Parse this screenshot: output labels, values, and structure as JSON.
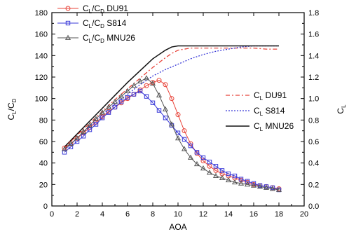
{
  "chart_data": {
    "type": "line",
    "xlabel": "AOA",
    "ylabel_left_main": "C",
    "ylabel_left_sub1": "L",
    "ylabel_left_mid": "/C",
    "ylabel_left_sub2": "D",
    "ylabel_right_main": "C",
    "ylabel_right_sub": "L",
    "xlim": [
      0,
      20
    ],
    "ylim_left": [
      0,
      180
    ],
    "ylim_right": [
      0.0,
      1.8
    ],
    "x_ticks": [
      "0",
      "2",
      "4",
      "6",
      "8",
      "10",
      "12",
      "14",
      "16",
      "18",
      "20"
    ],
    "y_left_ticks": [
      "0",
      "20",
      "40",
      "60",
      "80",
      "100",
      "120",
      "140",
      "160",
      "180"
    ],
    "y_right_ticks": [
      "0.0",
      "0.2",
      "0.4",
      "0.6",
      "0.8",
      "1.0",
      "1.2",
      "1.4",
      "1.6",
      "1.8"
    ],
    "legend_left": [
      {
        "prefix": "C",
        "sub1": "L",
        "mid": "/C",
        "sub2": "D",
        "name": " DU91",
        "color": "#e8443a",
        "marker": "circle"
      },
      {
        "prefix": "C",
        "sub1": "L",
        "mid": "/C",
        "sub2": "D",
        "name": " S814",
        "color": "#3a3ad8",
        "marker": "square"
      },
      {
        "prefix": "C",
        "sub1": "L",
        "mid": "/C",
        "sub2": "D",
        "name": " MNU26",
        "color": "#555555",
        "marker": "triangle"
      }
    ],
    "legend_right": [
      {
        "prefix": "C",
        "sub": "L",
        "name": " DU91",
        "color": "#e8443a",
        "dash": "6,3,2,3"
      },
      {
        "prefix": "C",
        "sub": "L",
        "name": " S814",
        "color": "#3a3ad8",
        "dash": "2,2"
      },
      {
        "prefix": "C",
        "sub": "L",
        "name": " MNU26",
        "color": "#111111",
        "dash": ""
      }
    ],
    "series_cl_cd": [
      {
        "name": "DU91",
        "axis": "left",
        "color": "#e8443a",
        "marker": "circle",
        "x": [
          1,
          1.5,
          2,
          2.5,
          3,
          3.5,
          4,
          4.5,
          5,
          5.5,
          6,
          6.5,
          7,
          7.5,
          8,
          8.5,
          9,
          9.5,
          10,
          10.5,
          11,
          11.5,
          12,
          12.5,
          13,
          13.5,
          14,
          14.5,
          15,
          15.5,
          16,
          16.5,
          17,
          17.5,
          18
        ],
        "y": [
          54,
          58,
          63,
          68,
          73,
          78,
          83,
          88,
          92,
          96,
          100,
          104,
          108,
          112,
          115,
          117,
          113,
          100,
          85,
          70,
          58,
          49,
          42,
          37,
          33,
          30,
          28,
          26,
          24,
          22,
          20,
          19,
          18,
          17,
          16
        ]
      },
      {
        "name": "S814",
        "axis": "left",
        "color": "#3a3ad8",
        "marker": "square",
        "x": [
          1,
          1.5,
          2,
          2.5,
          3,
          3.5,
          4,
          4.5,
          5,
          5.5,
          6,
          6.5,
          7,
          7.5,
          8,
          8.5,
          9,
          9.5,
          10,
          10.5,
          11,
          11.5,
          12,
          12.5,
          13,
          13.5,
          14,
          14.5,
          15,
          15.5,
          16,
          16.5,
          17,
          17.5,
          18
        ],
        "y": [
          50,
          55,
          60,
          65,
          71,
          76,
          82,
          87,
          92,
          97,
          101,
          104,
          107,
          102,
          96,
          89,
          82,
          75,
          68,
          62,
          56,
          50,
          45,
          41,
          37,
          33,
          30,
          28,
          25,
          23,
          21,
          19,
          18,
          17,
          15
        ]
      },
      {
        "name": "MNU26",
        "axis": "left",
        "color": "#555555",
        "marker": "triangle",
        "x": [
          1,
          1.5,
          2,
          2.5,
          3,
          3.5,
          4,
          4.5,
          5,
          5.5,
          6,
          6.5,
          7,
          7.5,
          8,
          8.5,
          9,
          9.5,
          10,
          10.5,
          11,
          11.5,
          12,
          12.5,
          13,
          13.5,
          14,
          14.5,
          15,
          15.5,
          16,
          16.5,
          17,
          17.5,
          18
        ],
        "y": [
          53,
          58,
          63,
          69,
          75,
          81,
          87,
          92,
          97,
          102,
          107,
          112,
          116,
          119,
          114,
          103,
          90,
          76,
          63,
          53,
          45,
          39,
          35,
          31,
          28,
          26,
          24,
          22,
          21,
          20,
          19,
          18,
          17,
          16,
          15
        ]
      }
    ],
    "series_cl": [
      {
        "name": "DU91",
        "axis": "right",
        "color": "#e8443a",
        "dash": "6,3,2,3",
        "x": [
          1,
          2,
          3,
          4,
          5,
          6,
          7,
          8,
          9,
          9.5,
          10,
          11,
          12,
          13,
          14,
          15,
          16,
          17,
          18
        ],
        "y": [
          0.54,
          0.66,
          0.77,
          0.88,
          0.99,
          1.09,
          1.19,
          1.29,
          1.38,
          1.42,
          1.45,
          1.47,
          1.47,
          1.47,
          1.47,
          1.47,
          1.47,
          1.46,
          1.46
        ]
      },
      {
        "name": "S814",
        "axis": "right",
        "color": "#3a3ad8",
        "dash": "2,2",
        "x": [
          1,
          2,
          3,
          4,
          5,
          6,
          7,
          8,
          9,
          10,
          11,
          12,
          13,
          14,
          15,
          16,
          17,
          18
        ],
        "y": [
          0.52,
          0.63,
          0.74,
          0.85,
          0.95,
          1.04,
          1.13,
          1.21,
          1.27,
          1.32,
          1.37,
          1.41,
          1.44,
          1.46,
          1.48,
          1.49,
          1.49,
          1.49
        ]
      },
      {
        "name": "MNU26",
        "axis": "right",
        "color": "#111111",
        "dash": "",
        "x": [
          1,
          2,
          3,
          4,
          5,
          6,
          7,
          8,
          9,
          9.5,
          10,
          11,
          12,
          13,
          14,
          15,
          16,
          17,
          18
        ],
        "y": [
          0.55,
          0.67,
          0.79,
          0.91,
          1.03,
          1.15,
          1.26,
          1.37,
          1.45,
          1.48,
          1.49,
          1.49,
          1.49,
          1.49,
          1.49,
          1.49,
          1.49,
          1.49,
          1.49
        ]
      }
    ]
  }
}
